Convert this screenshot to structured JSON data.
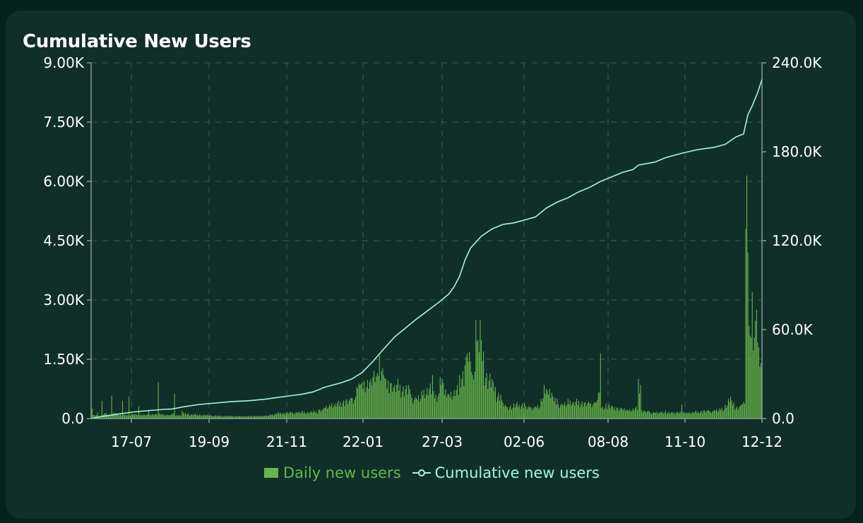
{
  "chart_data": {
    "type": "bar",
    "title": "Cumulative New Users",
    "x_tick_labels": [
      "17-07",
      "19-09",
      "21-11",
      "22-01",
      "27-03",
      "02-06",
      "08-08",
      "11-10",
      "12-12"
    ],
    "y_left_tick_labels": [
      "0.0",
      "1.50K",
      "3.00K",
      "4.50K",
      "6.00K",
      "7.50K",
      "9.00K"
    ],
    "y_right_tick_labels": [
      "0.0",
      "60.0K",
      "120.0K",
      "180.0K",
      "240.0K"
    ],
    "y_left_range": [
      0,
      9000
    ],
    "y_right_range": [
      0,
      240000
    ],
    "grid": true,
    "legend_position": "bottom",
    "colors": {
      "bar": "#68b64b",
      "line": "#a7f5dc",
      "background": "#112f29",
      "axis": "#8a9a95",
      "text": "#ffffff"
    },
    "series": [
      {
        "name": "Daily new users",
        "axis": "left",
        "kind": "bar",
        "points": [
          [
            0,
            50
          ],
          [
            1,
            250
          ],
          [
            3,
            80
          ],
          [
            6,
            150
          ],
          [
            8,
            60
          ],
          [
            10,
            450
          ],
          [
            14,
            130
          ],
          [
            16,
            80
          ],
          [
            19,
            580
          ],
          [
            23,
            140
          ],
          [
            25,
            90
          ],
          [
            29,
            450
          ],
          [
            33,
            90
          ],
          [
            35,
            560
          ],
          [
            39,
            100
          ],
          [
            44,
            310
          ],
          [
            48,
            95
          ],
          [
            53,
            220
          ],
          [
            57,
            110
          ],
          [
            62,
            920
          ],
          [
            66,
            110
          ],
          [
            70,
            90
          ],
          [
            75,
            120
          ],
          [
            77,
            620
          ],
          [
            80,
            80
          ],
          [
            84,
            200
          ],
          [
            90,
            130
          ],
          [
            100,
            100
          ],
          [
            110,
            85
          ],
          [
            120,
            70
          ],
          [
            130,
            65
          ],
          [
            140,
            60
          ],
          [
            150,
            65
          ],
          [
            160,
            70
          ],
          [
            165,
            100
          ],
          [
            170,
            140
          ],
          [
            180,
            150
          ],
          [
            190,
            160
          ],
          [
            200,
            170
          ],
          [
            210,
            220
          ],
          [
            215,
            280
          ],
          [
            220,
            350
          ],
          [
            225,
            380
          ],
          [
            230,
            420
          ],
          [
            235,
            450
          ],
          [
            240,
            520
          ],
          [
            245,
            800
          ],
          [
            248,
            850
          ],
          [
            250,
            900
          ],
          [
            255,
            980
          ],
          [
            258,
            1000
          ],
          [
            260,
            1050
          ],
          [
            264,
            1150
          ],
          [
            266,
            1600
          ],
          [
            268,
            1200
          ],
          [
            270,
            1100
          ],
          [
            272,
            1000
          ],
          [
            276,
            900
          ],
          [
            280,
            850
          ],
          [
            285,
            850
          ],
          [
            290,
            750
          ],
          [
            293,
            850
          ],
          [
            295,
            620
          ],
          [
            300,
            520
          ],
          [
            305,
            700
          ],
          [
            310,
            780
          ],
          [
            315,
            1100
          ],
          [
            318,
            600
          ],
          [
            322,
            1050
          ],
          [
            325,
            900
          ],
          [
            330,
            620
          ],
          [
            335,
            720
          ],
          [
            340,
            1100
          ],
          [
            345,
            1350
          ],
          [
            347,
            1650
          ],
          [
            350,
            1450
          ],
          [
            352,
            1100
          ],
          [
            355,
            2500
          ],
          [
            357,
            2000
          ],
          [
            359,
            2500
          ],
          [
            362,
            1700
          ],
          [
            365,
            1150
          ],
          [
            370,
            1000
          ],
          [
            373,
            800
          ],
          [
            378,
            600
          ],
          [
            380,
            400
          ],
          [
            383,
            300
          ],
          [
            390,
            380
          ],
          [
            395,
            350
          ],
          [
            400,
            380
          ],
          [
            405,
            280
          ],
          [
            410,
            300
          ],
          [
            415,
            500
          ],
          [
            418,
            850
          ],
          [
            421,
            700
          ],
          [
            425,
            650
          ],
          [
            430,
            500
          ],
          [
            435,
            350
          ],
          [
            440,
            500
          ],
          [
            445,
            420
          ],
          [
            450,
            450
          ],
          [
            455,
            400
          ],
          [
            460,
            380
          ],
          [
            465,
            420
          ],
          [
            468,
            650
          ],
          [
            470,
            1650
          ],
          [
            472,
            300
          ],
          [
            475,
            380
          ],
          [
            480,
            320
          ],
          [
            485,
            280
          ],
          [
            490,
            250
          ],
          [
            495,
            220
          ],
          [
            500,
            260
          ],
          [
            505,
            1000
          ],
          [
            507,
            850
          ],
          [
            510,
            200
          ],
          [
            515,
            180
          ],
          [
            520,
            150
          ],
          [
            525,
            170
          ],
          [
            530,
            200
          ],
          [
            535,
            150
          ],
          [
            540,
            160
          ],
          [
            545,
            350
          ],
          [
            550,
            150
          ],
          [
            555,
            170
          ],
          [
            560,
            180
          ],
          [
            565,
            200
          ],
          [
            570,
            190
          ],
          [
            575,
            210
          ],
          [
            580,
            260
          ],
          [
            585,
            350
          ],
          [
            588,
            500
          ],
          [
            590,
            550
          ],
          [
            593,
            400
          ],
          [
            596,
            300
          ],
          [
            600,
            350
          ],
          [
            602,
            420
          ],
          [
            604,
            4800
          ],
          [
            605,
            6150
          ],
          [
            606,
            4200
          ],
          [
            608,
            2100
          ],
          [
            610,
            3200
          ],
          [
            612,
            2050
          ],
          [
            614,
            2750
          ],
          [
            616,
            1800
          ],
          [
            618,
            1400
          ],
          [
            619,
            2650
          ]
        ]
      },
      {
        "name": "Cumulative new users",
        "axis": "right",
        "kind": "line",
        "points": [
          [
            0,
            0
          ],
          [
            10,
            1500
          ],
          [
            20,
            2500
          ],
          [
            40,
            4500
          ],
          [
            55,
            5500
          ],
          [
            67,
            6200
          ],
          [
            75,
            6500
          ],
          [
            86,
            8000
          ],
          [
            100,
            9500
          ],
          [
            115,
            10500
          ],
          [
            130,
            11500
          ],
          [
            145,
            12000
          ],
          [
            160,
            13000
          ],
          [
            170,
            14000
          ],
          [
            185,
            15500
          ],
          [
            195,
            16500
          ],
          [
            205,
            18000
          ],
          [
            215,
            21000
          ],
          [
            230,
            24000
          ],
          [
            240,
            26500
          ],
          [
            250,
            31000
          ],
          [
            260,
            38500
          ],
          [
            270,
            47000
          ],
          [
            280,
            55000
          ],
          [
            290,
            61000
          ],
          [
            300,
            67000
          ],
          [
            310,
            72500
          ],
          [
            320,
            78000
          ],
          [
            330,
            84000
          ],
          [
            335,
            89000
          ],
          [
            340,
            96000
          ],
          [
            345,
            107000
          ],
          [
            350,
            115000
          ],
          [
            360,
            123000
          ],
          [
            370,
            128000
          ],
          [
            380,
            131000
          ],
          [
            390,
            132000
          ],
          [
            400,
            134000
          ],
          [
            410,
            136000
          ],
          [
            420,
            142000
          ],
          [
            430,
            146000
          ],
          [
            440,
            149000
          ],
          [
            450,
            153000
          ],
          [
            460,
            156000
          ],
          [
            470,
            160000
          ],
          [
            480,
            163000
          ],
          [
            490,
            166000
          ],
          [
            500,
            168000
          ],
          [
            505,
            171000
          ],
          [
            520,
            173000
          ],
          [
            530,
            176000
          ],
          [
            545,
            179000
          ],
          [
            560,
            181500
          ],
          [
            575,
            183000
          ],
          [
            585,
            185000
          ],
          [
            595,
            190000
          ],
          [
            602,
            192000
          ],
          [
            606,
            205000
          ],
          [
            610,
            211000
          ],
          [
            615,
            220000
          ],
          [
            619,
            229000
          ]
        ]
      }
    ]
  }
}
